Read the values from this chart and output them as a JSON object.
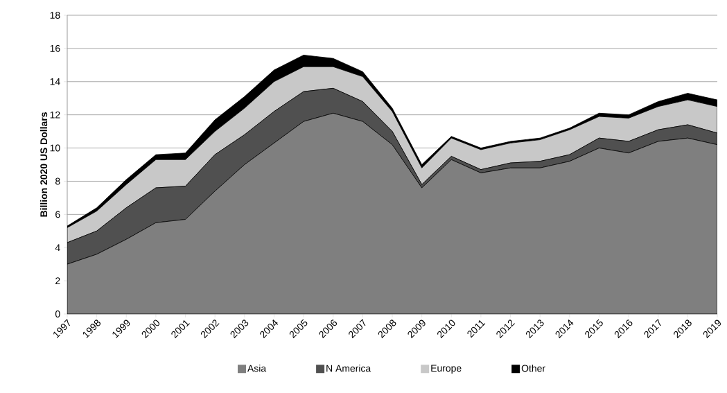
{
  "chart_data": {
    "type": "area",
    "stacked": true,
    "ylabel": "Billion 2020 US Dollars",
    "categories": [
      "1997",
      "1998",
      "1999",
      "2000",
      "2001",
      "2002",
      "2003",
      "2004",
      "2005",
      "2006",
      "2007",
      "2008",
      "2009",
      "2010",
      "2011",
      "2012",
      "2013",
      "2014",
      "2015",
      "2016",
      "2017",
      "2018",
      "2019"
    ],
    "series": [
      {
        "name": "Asia",
        "color": "#7f7f7f",
        "values": [
          3.0,
          3.6,
          4.5,
          5.5,
          5.7,
          7.4,
          9.0,
          10.3,
          11.6,
          12.1,
          11.6,
          10.2,
          7.6,
          9.3,
          8.5,
          8.8,
          8.8,
          9.2,
          10.0,
          9.7,
          10.4,
          10.6,
          10.2
        ]
      },
      {
        "name": "N America",
        "color": "#505050",
        "values": [
          1.3,
          1.4,
          1.9,
          2.1,
          2.0,
          2.2,
          1.8,
          1.9,
          1.8,
          1.5,
          1.2,
          0.8,
          0.2,
          0.2,
          0.2,
          0.3,
          0.4,
          0.4,
          0.6,
          0.7,
          0.7,
          0.8,
          0.7
        ]
      },
      {
        "name": "Europe",
        "color": "#c8c8c8",
        "values": [
          0.9,
          1.2,
          1.4,
          1.7,
          1.6,
          1.4,
          1.6,
          1.8,
          1.5,
          1.3,
          1.5,
          1.2,
          1.0,
          1.1,
          1.2,
          1.2,
          1.3,
          1.5,
          1.3,
          1.4,
          1.4,
          1.5,
          1.6
        ]
      },
      {
        "name": "Other",
        "color": "#000000",
        "values": [
          0.1,
          0.2,
          0.3,
          0.3,
          0.4,
          0.7,
          0.7,
          0.7,
          0.7,
          0.5,
          0.3,
          0.2,
          0.2,
          0.1,
          0.1,
          0.1,
          0.1,
          0.1,
          0.2,
          0.2,
          0.3,
          0.4,
          0.4
        ]
      }
    ],
    "ylim": [
      0,
      18
    ],
    "yticks": [
      0,
      2,
      4,
      6,
      8,
      10,
      12,
      14,
      16,
      18
    ],
    "grid": "y",
    "legend": "bottom"
  }
}
